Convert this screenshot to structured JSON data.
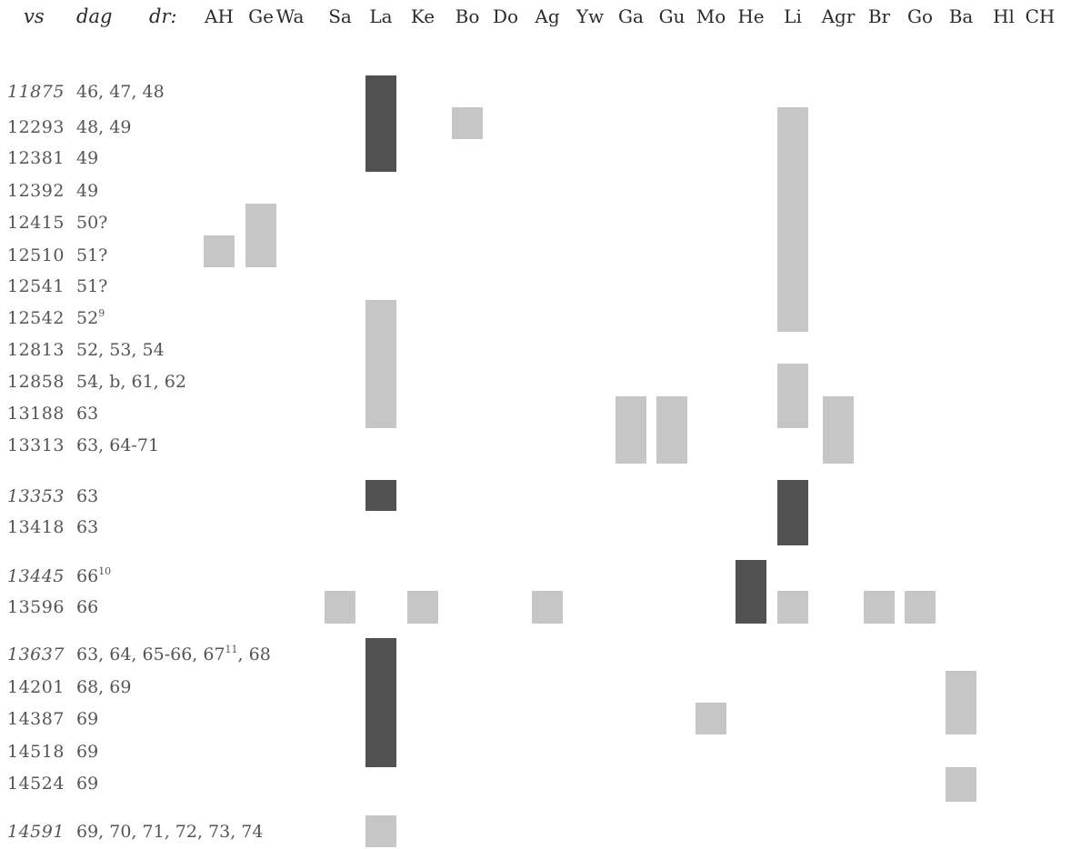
{
  "header": {
    "vs": "vs",
    "dag": "dag",
    "dr": "dr:"
  },
  "colors": {
    "light": "#c6c6c6",
    "dark": "#515151"
  },
  "columns": [
    "AH",
    "Ge",
    "Wa",
    "Sa",
    "La",
    "Ke",
    "Bo",
    "Do",
    "Ag",
    "Yw",
    "Ga",
    "Gu",
    "Mo",
    "He",
    "Li",
    "Agr",
    "Br",
    "Go",
    "Ba",
    "Hl",
    "CH"
  ],
  "rows": [
    {
      "vs": "11875",
      "italic": true,
      "dag": "46, 47, 48",
      "sup": ""
    },
    {
      "vs": "12293",
      "italic": false,
      "dag": "48, 49",
      "sup": ""
    },
    {
      "vs": "12381",
      "italic": false,
      "dag": "49",
      "sup": ""
    },
    {
      "vs": "12392",
      "italic": false,
      "dag": "49",
      "sup": ""
    },
    {
      "vs": "12415",
      "italic": false,
      "dag": "50?",
      "sup": ""
    },
    {
      "vs": "12510",
      "italic": false,
      "dag": "51?",
      "sup": ""
    },
    {
      "vs": "12541",
      "italic": false,
      "dag": "51?",
      "sup": ""
    },
    {
      "vs": "12542",
      "italic": false,
      "dag": "52",
      "sup": "9"
    },
    {
      "vs": "12813",
      "italic": false,
      "dag": "52, 53, 54",
      "sup": ""
    },
    {
      "vs": "12858",
      "italic": false,
      "dag": "54, b, 61, 62",
      "sup": ""
    },
    {
      "vs": "13188",
      "italic": false,
      "dag": "63",
      "sup": ""
    },
    {
      "vs": "13313",
      "italic": false,
      "dag": "63, 64-71",
      "sup": ""
    },
    {
      "vs": "13353",
      "italic": true,
      "dag": "63",
      "sup": ""
    },
    {
      "vs": "13418",
      "italic": false,
      "dag": "63",
      "sup": ""
    },
    {
      "vs": "13445",
      "italic": true,
      "dag": "66",
      "sup": "10"
    },
    {
      "vs": "13596",
      "italic": false,
      "dag": "66",
      "sup": ""
    },
    {
      "vs": "13637",
      "italic": true,
      "dag": "63, 64, 65-66, 67",
      "sup": "11",
      "dag_after": ", 68"
    },
    {
      "vs": "14201",
      "italic": false,
      "dag": "68, 69",
      "sup": ""
    },
    {
      "vs": "14387",
      "italic": false,
      "dag": "69",
      "sup": ""
    },
    {
      "vs": "14518",
      "italic": false,
      "dag": "69",
      "sup": ""
    },
    {
      "vs": "14524",
      "italic": false,
      "dag": "69",
      "sup": ""
    },
    {
      "vs": "14591",
      "italic": true,
      "dag": "69, 70, 71, 72, 73, 74",
      "sup": ""
    }
  ],
  "cells": [
    {
      "col": "La",
      "from": "11875",
      "to": "12381",
      "shade": "dark"
    },
    {
      "col": "Bo",
      "from": "12293",
      "to": "12293",
      "shade": "light"
    },
    {
      "col": "Li",
      "from": "12293",
      "to": "12542",
      "shade": "light"
    },
    {
      "col": "Ge",
      "from": "12415",
      "to": "12510",
      "shade": "light"
    },
    {
      "col": "AH",
      "from": "12510",
      "to": "12510",
      "shade": "light"
    },
    {
      "col": "La",
      "from": "12542",
      "to": "13188",
      "shade": "light"
    },
    {
      "col": "Li",
      "from": "12858",
      "to": "13188",
      "shade": "light"
    },
    {
      "col": "Ga",
      "from": "13188",
      "to": "13313",
      "shade": "light"
    },
    {
      "col": "Gu",
      "from": "13188",
      "to": "13313",
      "shade": "light"
    },
    {
      "col": "Agr",
      "from": "13188",
      "to": "13313",
      "shade": "light"
    },
    {
      "col": "La",
      "from": "13353",
      "to": "13353",
      "shade": "dark"
    },
    {
      "col": "Li",
      "from": "13353",
      "to": "13418",
      "shade": "dark"
    },
    {
      "col": "He",
      "from": "13445",
      "to": "13596",
      "shade": "dark"
    },
    {
      "col": "Sa",
      "from": "13596",
      "to": "13596",
      "shade": "light"
    },
    {
      "col": "Ke",
      "from": "13596",
      "to": "13596",
      "shade": "light"
    },
    {
      "col": "Ag",
      "from": "13596",
      "to": "13596",
      "shade": "light"
    },
    {
      "col": "Li",
      "from": "13596",
      "to": "13596",
      "shade": "light"
    },
    {
      "col": "Br",
      "from": "13596",
      "to": "13596",
      "shade": "light"
    },
    {
      "col": "Go",
      "from": "13596",
      "to": "13596",
      "shade": "light"
    },
    {
      "col": "La",
      "from": "13637",
      "to": "14518",
      "shade": "dark"
    },
    {
      "col": "Ba",
      "from": "14201",
      "to": "14387",
      "shade": "light"
    },
    {
      "col": "Mo",
      "from": "14387",
      "to": "14387",
      "shade": "light"
    },
    {
      "col": "Ba",
      "from": "14524",
      "to": "14524",
      "shade": "light"
    },
    {
      "col": "La",
      "from": "14591",
      "to": "14591",
      "shade": "light"
    }
  ]
}
